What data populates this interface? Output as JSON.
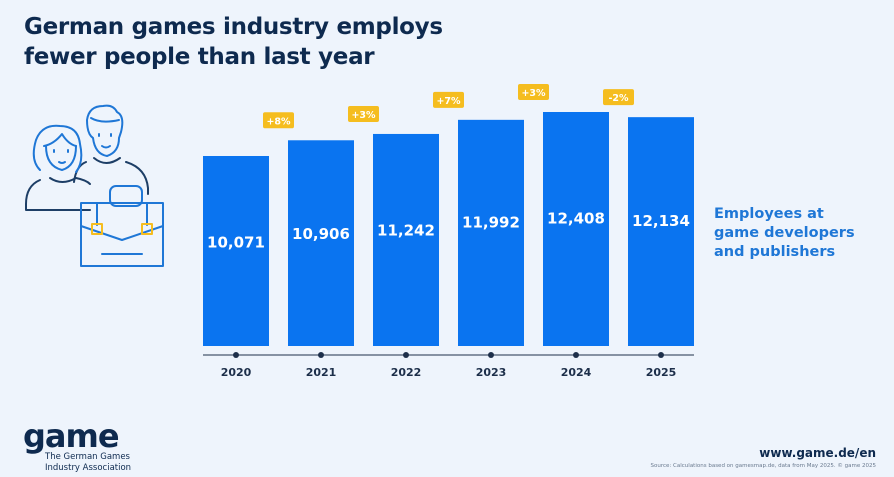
{
  "header": {
    "title_line1": "German games industry employs",
    "title_line2": "fewer people than last year"
  },
  "legend": {
    "line1": "Employees at",
    "line2": "game developers",
    "line3": "and publishers"
  },
  "footer": {
    "logo": "game",
    "logo_sub1": "The German Games",
    "logo_sub2": "Industry Association",
    "url": "www.game.de/en",
    "source": "Source: Calculations based on gamesmap.de, data from May 2025. © game 2025"
  },
  "colors": {
    "bar": "#0a74f0",
    "badge": "#f5bd1f",
    "text_dark": "#0e2a4f",
    "accent": "#1f77d6",
    "background": "#eef4fc"
  },
  "chart_data": {
    "type": "bar",
    "title": "German games industry employs fewer people than last year",
    "xlabel": "",
    "ylabel": "Employees at game developers and publishers",
    "categories": [
      "2020",
      "2021",
      "2022",
      "2023",
      "2024",
      "2025"
    ],
    "values": [
      10071,
      10906,
      11242,
      11992,
      12408,
      12134
    ],
    "value_labels": [
      "10,071",
      "10,906",
      "11,242",
      "11,992",
      "12,408",
      "12,134"
    ],
    "changes": [
      {
        "between": [
          "2020",
          "2021"
        ],
        "label": "+8%"
      },
      {
        "between": [
          "2021",
          "2022"
        ],
        "label": "+3%"
      },
      {
        "between": [
          "2022",
          "2023"
        ],
        "label": "+7%"
      },
      {
        "between": [
          "2023",
          "2024"
        ],
        "label": "+3%"
      },
      {
        "between": [
          "2024",
          "2025"
        ],
        "label": "-2%"
      }
    ],
    "grid": false,
    "legend_position": "right"
  }
}
